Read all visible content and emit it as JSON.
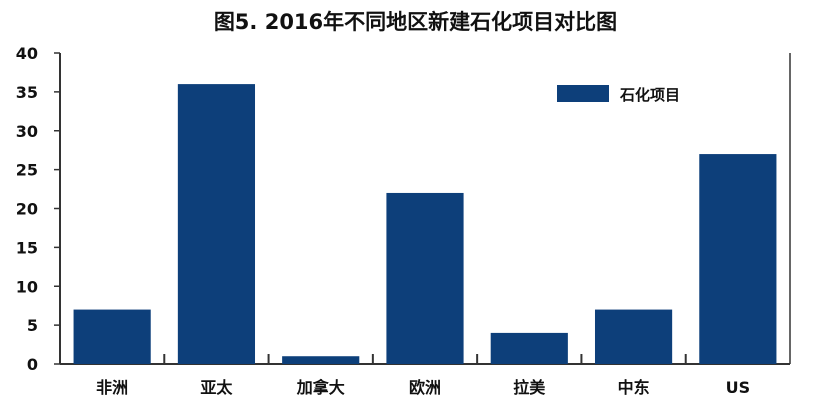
{
  "chart_data": {
    "type": "bar",
    "title": "图5. 2016年不同地区新建石化项目对比图",
    "categories": [
      "非洲",
      "亚太",
      "加拿大",
      "欧洲",
      "拉美",
      "中东",
      "US"
    ],
    "series": [
      {
        "name": "石化项目",
        "values": [
          7,
          36,
          1,
          22,
          4,
          7,
          27
        ]
      }
    ],
    "ylim": [
      0,
      40
    ],
    "yticks": [
      0,
      5,
      10,
      15,
      20,
      25,
      30,
      35,
      40
    ],
    "xlabel": "",
    "ylabel": "",
    "grid": false,
    "legend_position": "top-right",
    "colors": {
      "bar": "#0d3f7a",
      "axis": "#333333"
    }
  }
}
